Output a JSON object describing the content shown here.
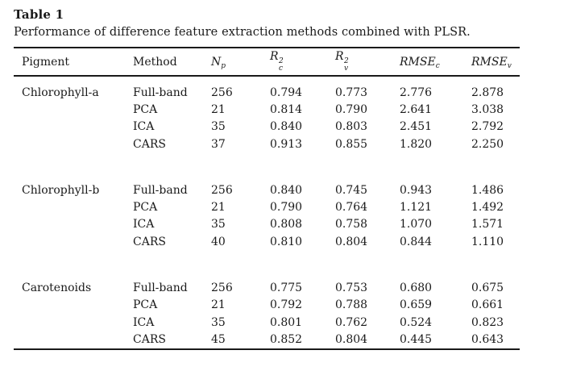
{
  "table": {
    "title": "Table 1",
    "caption": "Performance of difference feature extraction methods combined with PLSR.",
    "columns": {
      "pigment": "Pigment",
      "method": "Method",
      "np_base": "N",
      "np_sub": "p",
      "r2c_base": "R",
      "r2c_sup": "2",
      "r2c_sub": "c",
      "r2v_base": "R",
      "r2v_sup": "2",
      "r2v_sub": "v",
      "rmsec_base": "RMSE",
      "rmsec_sub": "c",
      "rmsev_base": "RMSE",
      "rmsev_sub": "v"
    },
    "groups": [
      {
        "pigment": "Chlorophyll-a",
        "rows": [
          {
            "method": "Full-band",
            "np": "256",
            "r2c": "0.794",
            "r2v": "0.773",
            "rmsec": "2.776",
            "rmsev": "2.878"
          },
          {
            "method": "PCA",
            "np": "21",
            "r2c": "0.814",
            "r2v": "0.790",
            "rmsec": "2.641",
            "rmsev": "3.038"
          },
          {
            "method": "ICA",
            "np": "35",
            "r2c": "0.840",
            "r2v": "0.803",
            "rmsec": "2.451",
            "rmsev": "2.792"
          },
          {
            "method": "CARS",
            "np": "37",
            "r2c": "0.913",
            "r2v": "0.855",
            "rmsec": "1.820",
            "rmsev": "2.250"
          }
        ]
      },
      {
        "pigment": "Chlorophyll-b",
        "rows": [
          {
            "method": "Full-band",
            "np": "256",
            "r2c": "0.840",
            "r2v": "0.745",
            "rmsec": "0.943",
            "rmsev": "1.486"
          },
          {
            "method": "PCA",
            "np": "21",
            "r2c": "0.790",
            "r2v": "0.764",
            "rmsec": "1.121",
            "rmsev": "1.492"
          },
          {
            "method": "ICA",
            "np": "35",
            "r2c": "0.808",
            "r2v": "0.758",
            "rmsec": "1.070",
            "rmsev": "1.571"
          },
          {
            "method": "CARS",
            "np": "40",
            "r2c": "0.810",
            "r2v": "0.804",
            "rmsec": "0.844",
            "rmsev": "1.110"
          }
        ]
      },
      {
        "pigment": "Carotenoids",
        "rows": [
          {
            "method": "Full-band",
            "np": "256",
            "r2c": "0.775",
            "r2v": "0.753",
            "rmsec": "0.680",
            "rmsev": "0.675"
          },
          {
            "method": "PCA",
            "np": "21",
            "r2c": "0.792",
            "r2v": "0.788",
            "rmsec": "0.659",
            "rmsev": "0.661"
          },
          {
            "method": "ICA",
            "np": "35",
            "r2c": "0.801",
            "r2v": "0.762",
            "rmsec": "0.524",
            "rmsev": "0.823"
          },
          {
            "method": "CARS",
            "np": "45",
            "r2c": "0.852",
            "r2v": "0.804",
            "rmsec": "0.445",
            "rmsev": "0.643"
          }
        ]
      }
    ],
    "colors": {
      "text": "#1a1a1a",
      "rule": "#1a1a1a",
      "background": "#ffffff"
    }
  }
}
